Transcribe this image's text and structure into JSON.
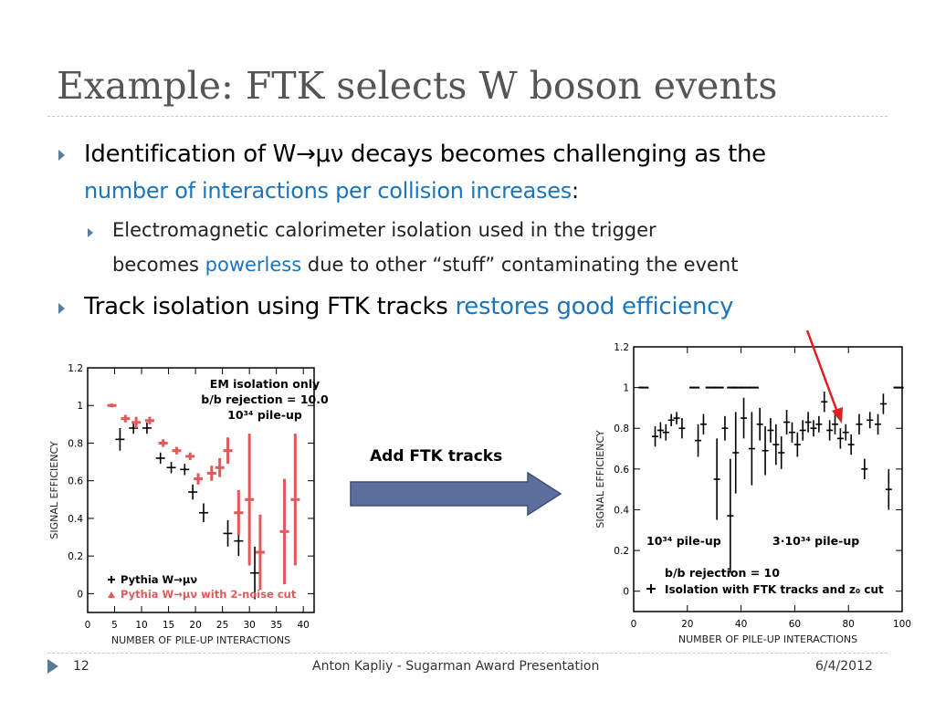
{
  "slide": {
    "title": "Example: FTK selects W boson events",
    "bullet1": {
      "text_a": "Identification of W→μν decays becomes challenging as the",
      "text_b_highlight": "number of interactions per collision increases",
      "text_b_tail": ":"
    },
    "sub_bullet": {
      "line1": "Electromagnetic calorimeter isolation used in the trigger",
      "line2_head": "becomes ",
      "line2_highlight": "powerless",
      "line2_tail": " due to other “stuff” contaminating the event"
    },
    "bullet2": {
      "text": "Track isolation using FTK tracks ",
      "highlight": "restores good efficiency"
    },
    "arrow_label": "Add FTK tracks",
    "footer": {
      "page": "12",
      "center": "Anton Kapliy - Sugarman Award Presentation",
      "date": "6/4/2012"
    },
    "colors": {
      "highlight": "#1b75bc",
      "bullet": "#5b7a9a",
      "arrow_fill": "#5c6f9c",
      "pointer": "#e02020",
      "red_series": "#e05a5a"
    }
  },
  "chart_data": [
    {
      "type": "scatter",
      "xlabel": "NUMBER OF PILE-UP INTERACTIONS",
      "ylabel": "SIGNAL EFFICIENCY",
      "xlim": [
        0,
        42
      ],
      "ylim": [
        -0.1,
        1.2
      ],
      "xticks": [
        "0",
        "5",
        "10",
        "15",
        "20",
        "25",
        "30",
        "35",
        "40"
      ],
      "yticks": [
        "0",
        "0.2",
        "0.4",
        "0.6",
        "0.8",
        "1",
        "1.2"
      ],
      "annotations": [
        "EM isolation only",
        "b/b rejection = 10.0",
        "10³⁴ pile-up"
      ],
      "series": [
        {
          "name": "Pythia W→μν",
          "color": "#000000",
          "points": [
            {
              "x": 6,
              "y": 0.82,
              "err": 0.06
            },
            {
              "x": 8.5,
              "y": 0.88,
              "err": 0.03
            },
            {
              "x": 11,
              "y": 0.88,
              "err": 0.03
            },
            {
              "x": 13.5,
              "y": 0.72,
              "err": 0.03
            },
            {
              "x": 15.5,
              "y": 0.67,
              "err": 0.03
            },
            {
              "x": 18,
              "y": 0.66,
              "err": 0.03
            },
            {
              "x": 19.5,
              "y": 0.54,
              "err": 0.04
            },
            {
              "x": 21.5,
              "y": 0.43,
              "err": 0.05
            },
            {
              "x": 26,
              "y": 0.32,
              "err": 0.07
            },
            {
              "x": 28,
              "y": 0.28,
              "err": 0.08
            },
            {
              "x": 31,
              "y": 0.11,
              "err": 0.14
            }
          ]
        },
        {
          "name": "Pythia W→μν with 2-noise cut",
          "color": "#e05a5a",
          "points": [
            {
              "x": 4.5,
              "y": 1.0,
              "err": 0.01
            },
            {
              "x": 7,
              "y": 0.93,
              "err": 0.02
            },
            {
              "x": 9,
              "y": 0.91,
              "err": 0.03
            },
            {
              "x": 11.5,
              "y": 0.92,
              "err": 0.02
            },
            {
              "x": 14,
              "y": 0.8,
              "err": 0.02
            },
            {
              "x": 16.5,
              "y": 0.76,
              "err": 0.02
            },
            {
              "x": 19,
              "y": 0.73,
              "err": 0.02
            },
            {
              "x": 20.5,
              "y": 0.61,
              "err": 0.03
            },
            {
              "x": 23,
              "y": 0.64,
              "err": 0.04
            },
            {
              "x": 24.5,
              "y": 0.67,
              "err": 0.05
            },
            {
              "x": 26,
              "y": 0.76,
              "err": 0.07
            },
            {
              "x": 28,
              "y": 0.43,
              "err": 0.12
            },
            {
              "x": 30,
              "y": 0.5,
              "err": 0.35
            },
            {
              "x": 32,
              "y": 0.22,
              "err": 0.2
            },
            {
              "x": 36.5,
              "y": 0.33,
              "err": 0.28
            },
            {
              "x": 38.5,
              "y": 0.5,
              "err": 0.35
            }
          ]
        }
      ]
    },
    {
      "type": "scatter",
      "xlabel": "NUMBER OF PILE-UP INTERACTIONS",
      "ylabel": "SIGNAL EFFICIENCY",
      "xlim": [
        0,
        100
      ],
      "ylim": [
        -0.1,
        1.2
      ],
      "xticks": [
        "0",
        "20",
        "40",
        "60",
        "80",
        "100"
      ],
      "yticks": [
        "0",
        "0.2",
        "0.4",
        "0.6",
        "0.8",
        "1",
        "1.2"
      ],
      "annotations": [
        "10³⁴ pile-up",
        "3·10³⁴ pile-up",
        "b/b rejection = 10"
      ],
      "series": [
        {
          "name": "Isolation with FTK tracks and z₀ cut",
          "color": "#000000",
          "points": [
            {
              "x": 3,
              "y": 1.0,
              "err": 0.0
            },
            {
              "x": 8,
              "y": 0.76,
              "err": 0.05
            },
            {
              "x": 10,
              "y": 0.79,
              "err": 0.04
            },
            {
              "x": 12,
              "y": 0.78,
              "err": 0.04
            },
            {
              "x": 14,
              "y": 0.84,
              "err": 0.03
            },
            {
              "x": 16,
              "y": 0.85,
              "err": 0.03
            },
            {
              "x": 18,
              "y": 0.8,
              "err": 0.05
            },
            {
              "x": 22,
              "y": 1.0,
              "err": 0.0
            },
            {
              "x": 24,
              "y": 0.74,
              "err": 0.08
            },
            {
              "x": 26,
              "y": 0.82,
              "err": 0.05
            },
            {
              "x": 28,
              "y": 1.0,
              "err": 0.0
            },
            {
              "x": 31,
              "y": 1.0,
              "err": 0.0
            },
            {
              "x": 34,
              "y": 0.8,
              "err": 0.06
            },
            {
              "x": 36,
              "y": 1.0,
              "err": 0.0
            },
            {
              "x": 38,
              "y": 1.0,
              "err": 0.0
            },
            {
              "x": 41,
              "y": 1.0,
              "err": 0.0
            },
            {
              "x": 44,
              "y": 1.0,
              "err": 0.0
            },
            {
              "x": 31,
              "y": 0.55,
              "err": 0.2
            },
            {
              "x": 36,
              "y": 0.37,
              "err": 0.28
            },
            {
              "x": 38,
              "y": 0.68,
              "err": 0.2
            },
            {
              "x": 41,
              "y": 0.85,
              "err": 0.1
            },
            {
              "x": 44,
              "y": 0.7,
              "err": 0.18
            },
            {
              "x": 47,
              "y": 0.82,
              "err": 0.08
            },
            {
              "x": 49,
              "y": 0.69,
              "err": 0.12
            },
            {
              "x": 51,
              "y": 0.79,
              "err": 0.06
            },
            {
              "x": 53,
              "y": 0.72,
              "err": 0.1
            },
            {
              "x": 55,
              "y": 0.68,
              "err": 0.08
            },
            {
              "x": 57,
              "y": 0.83,
              "err": 0.06
            },
            {
              "x": 59,
              "y": 0.78,
              "err": 0.05
            },
            {
              "x": 61,
              "y": 0.72,
              "err": 0.06
            },
            {
              "x": 63,
              "y": 0.79,
              "err": 0.05
            },
            {
              "x": 65,
              "y": 0.83,
              "err": 0.05
            },
            {
              "x": 67,
              "y": 0.8,
              "err": 0.04
            },
            {
              "x": 69,
              "y": 0.82,
              "err": 0.04
            },
            {
              "x": 71,
              "y": 0.93,
              "err": 0.05
            },
            {
              "x": 73,
              "y": 0.79,
              "err": 0.05
            },
            {
              "x": 75,
              "y": 0.82,
              "err": 0.05
            },
            {
              "x": 77,
              "y": 0.75,
              "err": 0.05
            },
            {
              "x": 79,
              "y": 0.78,
              "err": 0.04
            },
            {
              "x": 81,
              "y": 0.72,
              "err": 0.05
            },
            {
              "x": 84,
              "y": 0.82,
              "err": 0.05
            },
            {
              "x": 86,
              "y": 0.6,
              "err": 0.05
            },
            {
              "x": 88,
              "y": 0.84,
              "err": 0.04
            },
            {
              "x": 91,
              "y": 0.82,
              "err": 0.05
            },
            {
              "x": 93,
              "y": 0.92,
              "err": 0.05
            },
            {
              "x": 95,
              "y": 0.5,
              "err": 0.1
            },
            {
              "x": 98,
              "y": 1.0,
              "err": 0.0
            }
          ]
        }
      ]
    }
  ]
}
